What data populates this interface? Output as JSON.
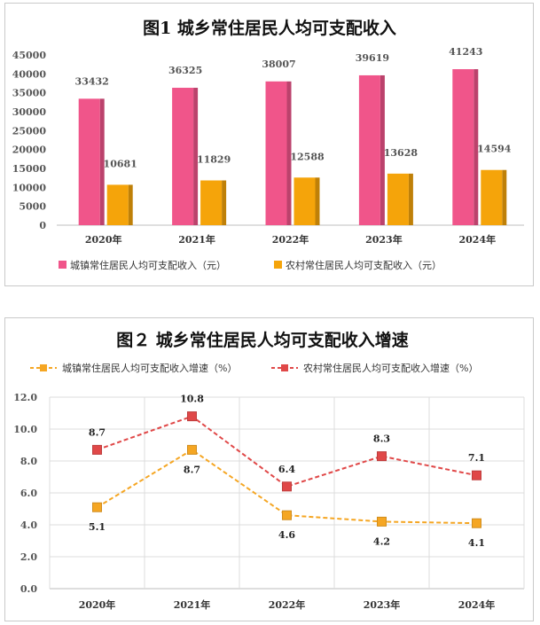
{
  "chart_data": [
    {
      "type": "bar",
      "title": "图1  城乡常住居民人均可支配收入",
      "categories": [
        "2020年",
        "2021年",
        "2022年",
        "2023年",
        "2024年"
      ],
      "ylim": [
        0,
        45000
      ],
      "yticks": [
        "0",
        "5000",
        "10000",
        "15000",
        "20000",
        "25000",
        "30000",
        "35000",
        "40000",
        "45000"
      ],
      "grid": false,
      "legend_position": "bottom",
      "series": [
        {
          "name": "城镇常住居民人均可支配收入（元）",
          "color": "#f0558a",
          "values": [
            33432,
            36325,
            38007,
            39619,
            41243
          ],
          "labels": [
            "33432",
            "36325",
            "38007",
            "39619",
            "41243"
          ]
        },
        {
          "name": "农村常住居民人均可支配收入（元）",
          "color": "#f5a40a",
          "values": [
            10681,
            11829,
            12588,
            13628,
            14594
          ],
          "labels": [
            "10681",
            "11829",
            "12588",
            "13628",
            "14594"
          ]
        }
      ]
    },
    {
      "type": "line",
      "title": "图２ 城乡常住居民人均可支配收入增速",
      "categories": [
        "2020年",
        "2021年",
        "2022年",
        "2023年",
        "2024年"
      ],
      "ylim": [
        0,
        12
      ],
      "yticks": [
        "0.0",
        "2.0",
        "4.0",
        "6.0",
        "8.0",
        "10.0",
        "12.0"
      ],
      "grid": true,
      "legend_position": "top",
      "series": [
        {
          "name": "城镇常住居民人均可支配收入增速（%）",
          "color": "#f5a623",
          "values": [
            5.1,
            8.7,
            4.6,
            4.2,
            4.1
          ],
          "labels": [
            "5.1",
            "8.7",
            "4.6",
            "4.2",
            "4.1"
          ]
        },
        {
          "name": "农村常住居民人均可支配收入增速（%）",
          "color": "#e04848",
          "values": [
            8.7,
            10.8,
            6.4,
            8.3,
            7.1
          ],
          "labels": [
            "8.7",
            "10.8",
            "6.4",
            "8.3",
            "7.1"
          ]
        }
      ]
    }
  ]
}
